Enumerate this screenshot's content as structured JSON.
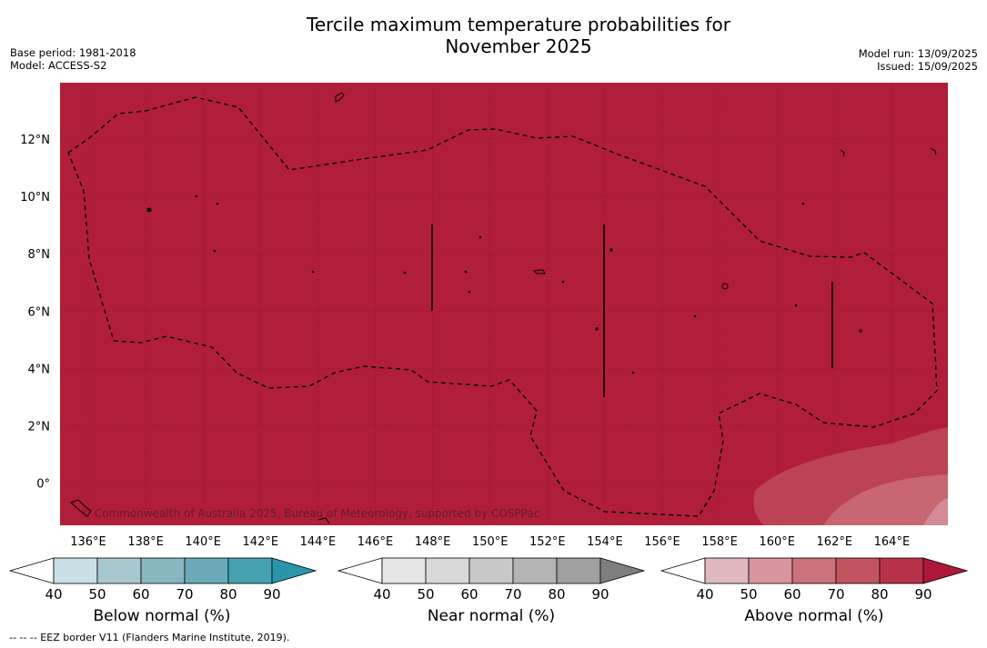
{
  "title_line1": "Tercile maximum temperature probabilities for",
  "title_line2": "November 2025",
  "meta_left": [
    "Base period: 1981-2018",
    "Model: ACCESS-S2"
  ],
  "meta_right": [
    "Model run: 13/09/2025",
    "Issued: 15/09/2025"
  ],
  "copyright": "© Commonwealth of Australia 2025, Bureau of Meteorology, supported by COSPPac",
  "footnote": "--  --  -- EEZ border V11 (Flanders Marine Institute, 2019).",
  "map": {
    "lon_labels": [
      "136°E",
      "138°E",
      "140°E",
      "142°E",
      "144°E",
      "146°E",
      "148°E",
      "150°E",
      "152°E",
      "154°E",
      "156°E",
      "158°E",
      "160°E",
      "162°E",
      "164°E"
    ],
    "lat_labels": [
      "12°N",
      "10°N",
      "8°N",
      "6°N",
      "4°N",
      "2°N",
      "0°"
    ],
    "background_color": "#b01e3a"
  },
  "colorbars": [
    {
      "name": "below",
      "label": "Below normal (%)",
      "ticks": [
        "40",
        "50",
        "60",
        "70",
        "80",
        "90"
      ],
      "colors": [
        "#ffffff",
        "#c8e0e6",
        "#a6c8ce",
        "#88b6c1",
        "#69abb9",
        "#46a1b1",
        "#2a94aa"
      ]
    },
    {
      "name": "near",
      "label": "Near normal (%)",
      "ticks": [
        "40",
        "50",
        "60",
        "70",
        "80",
        "90"
      ],
      "colors": [
        "#ffffff",
        "#e6e6e6",
        "#d8d8d8",
        "#c8c8c8",
        "#b4b4b4",
        "#a0a0a0",
        "#7e7e7e"
      ]
    },
    {
      "name": "above",
      "label": "Above normal (%)",
      "ticks": [
        "40",
        "50",
        "60",
        "70",
        "80",
        "90"
      ],
      "colors": [
        "#ffffff",
        "#e0b9c0",
        "#d8959d",
        "#cc727c",
        "#c2535f",
        "#b8324a",
        "#ae1838"
      ]
    }
  ]
}
